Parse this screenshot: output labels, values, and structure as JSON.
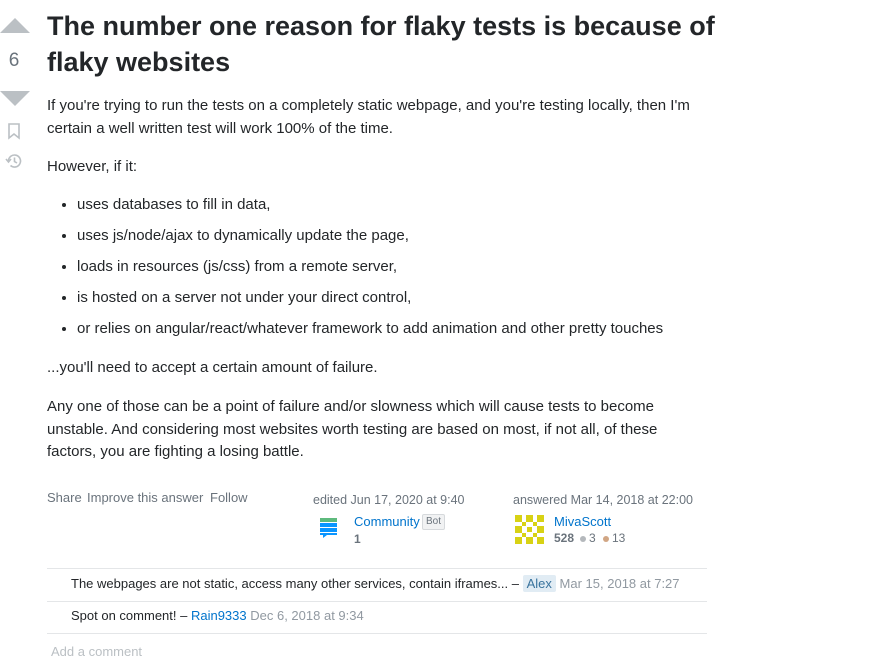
{
  "vote": {
    "count": "6"
  },
  "answer": {
    "title": "The number one reason for flaky tests is because of flaky websites",
    "p1": "If you're trying to run the tests on a completely static webpage, and you're testing locally, then I'm certain a well written test will work 100% of the time.",
    "p2": "However, if it:",
    "bullets": [
      "uses databases to fill in data,",
      "uses js/node/ajax to dynamically update the page,",
      "loads in resources (js/css) from a remote server,",
      "is hosted on a server not under your direct control,",
      "or relies on angular/react/whatever framework to add animation and other pretty touches"
    ],
    "p3": "...you'll need to accept a certain amount of failure.",
    "p4": "Any one of those can be a point of failure and/or slowness which will cause tests to become unstable. And considering most websites worth testing are based on most, if not all, of these factors, you are fighting a losing battle."
  },
  "actions": {
    "share": "Share",
    "improve": "Improve this answer",
    "follow": "Follow"
  },
  "edited": {
    "label": "edited Jun 17, 2020 at 9:40",
    "user": "Community",
    "tag": "Bot",
    "rep": "1"
  },
  "answered": {
    "label": "answered Mar 14, 2018 at 22:00",
    "user": "MivaScott",
    "rep": "528",
    "silver": "3",
    "bronze": "13"
  },
  "comments": [
    {
      "text": "The webpages are not static, access many other services, contain iframes... –",
      "user": "Alex",
      "date": "Mar 15, 2018 at 7:27"
    },
    {
      "text": "Spot on comment! –",
      "user": "Rain9333",
      "date": "Dec 6, 2018 at 9:34"
    }
  ],
  "add_comment": "Add a comment",
  "colors": {
    "link": "#0074cc",
    "muted": "#6a737c",
    "arrow": "#bbc0c4",
    "silver": "#b4b8bc",
    "bronze": "#d1a684"
  },
  "icons": [
    "upvote-icon",
    "downvote-icon",
    "bookmark-icon",
    "history-icon",
    "community-avatar-icon",
    "identicon-avatar"
  ]
}
